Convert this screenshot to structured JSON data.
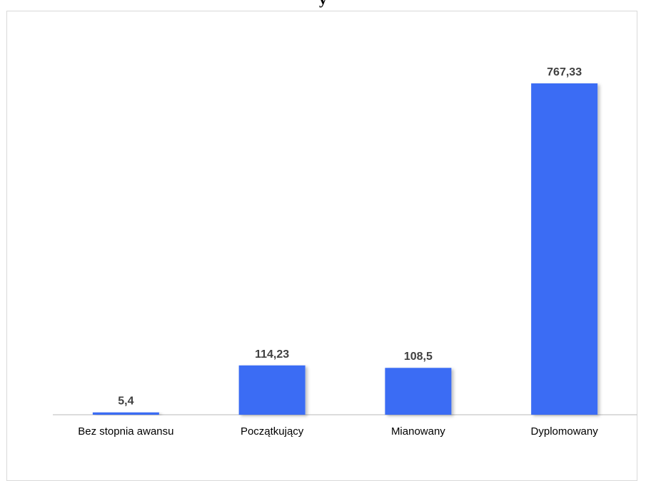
{
  "chart_data": {
    "type": "bar",
    "title": "",
    "categories": [
      "Bez stopnia awansu",
      "Początkujący",
      "Mianowany",
      "Dyplomowany"
    ],
    "values": [
      5.4,
      114.23,
      108.5,
      767.33
    ],
    "data_labels": [
      "5,4",
      "114,23",
      "108,5",
      "767,33"
    ],
    "xlabel": "",
    "ylabel": "",
    "ylim": [
      0,
      800
    ],
    "grid": false,
    "legend": "none",
    "bar_color": "#3a6cf4",
    "axis_color": "#d0d0d0"
  }
}
